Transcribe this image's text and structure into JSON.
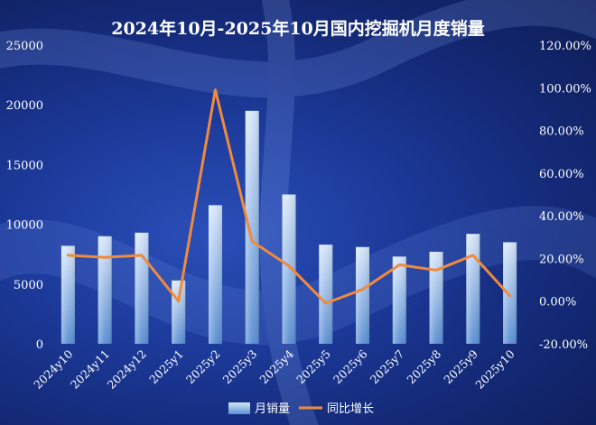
{
  "chart_data": {
    "type": "bar+line",
    "title": "2024年10月-2025年10月国内挖掘机月度销量",
    "categories": [
      "2024y10",
      "2024y11",
      "2024y12",
      "2025y1",
      "2025y2",
      "2025y3",
      "2025y4",
      "2025y5",
      "2025y6",
      "2025y7",
      "2025y8",
      "2025y9",
      "2025y10"
    ],
    "series": [
      {
        "name": "月销量",
        "type": "bar",
        "axis": "left",
        "values": [
          8200,
          9000,
          9300,
          5300,
          11600,
          19500,
          12500,
          8300,
          8100,
          7300,
          7700,
          9200,
          8500
        ]
      },
      {
        "name": "同比增长",
        "type": "line",
        "axis": "right",
        "values": [
          21.5,
          20.5,
          21.5,
          0.0,
          99.0,
          28.0,
          16.5,
          -1.0,
          5.5,
          17.0,
          14.5,
          21.5,
          2.5
        ]
      }
    ],
    "y_left": {
      "min": 0,
      "max": 25000,
      "ticks": [
        "0",
        "5000",
        "10000",
        "15000",
        "20000",
        "25000"
      ]
    },
    "y_right": {
      "min": -20,
      "max": 120,
      "ticks": [
        "-20.00%",
        "0.00%",
        "20.00%",
        "40.00%",
        "60.00%",
        "80.00%",
        "100.00%",
        "120.00%"
      ]
    },
    "legend": {
      "position": "bottom",
      "items": [
        "月销量",
        "同比增长"
      ]
    },
    "colors": {
      "bar_top": "#d6e6fa",
      "bar_bottom": "#5a8fd4",
      "line": "#f08a3c",
      "text": "#ffffff"
    },
    "grid": false
  }
}
